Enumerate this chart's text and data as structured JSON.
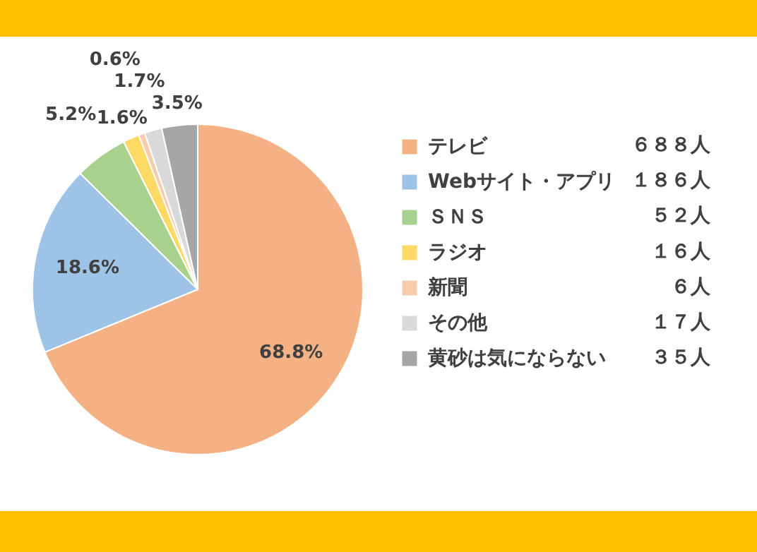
{
  "chart_data": {
    "type": "pie",
    "categories": [
      "テレビ",
      "Webサイト・アプリ",
      "ＳＮＳ",
      "ラジオ",
      "新聞",
      "その他",
      "黄砂は気にならない"
    ],
    "values": [
      68.8,
      18.6,
      5.2,
      1.6,
      0.6,
      1.7,
      3.5
    ],
    "colors": [
      "#f4b183",
      "#9dc3e6",
      "#a9d18e",
      "#ffd966",
      "#f8cbad",
      "#d9d9d9",
      "#a6a6a6"
    ],
    "value_labels": [
      "68.8%",
      "18.6%",
      "5.2%",
      "1.6%",
      "0.6%",
      "1.7%",
      "3.5%"
    ],
    "annotations": [
      "６８８人",
      "１８６人",
      "５２人",
      "１６人",
      "６人",
      "１７人",
      "３５人"
    ],
    "legend": "right"
  }
}
